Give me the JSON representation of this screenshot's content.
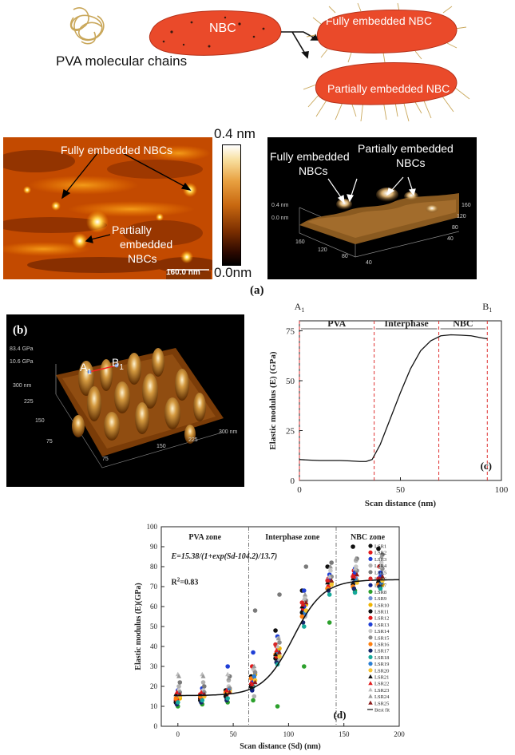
{
  "schematic": {
    "pva_label": "PVA molecular chains",
    "nbc_label": "NBC",
    "fully_label": "Fully embedded NBC",
    "partial_label": "Partially embedded NBC"
  },
  "afm_topography": {
    "fully_label": "Fully embedded NBCs",
    "partial_label_1": "Partially",
    "partial_label_2": "embedded",
    "partial_label_3": "NBCs",
    "scale_bar": "160.0 nm"
  },
  "colorbar": {
    "max": "0.4 nm",
    "min": "0.0nm"
  },
  "afm_3d": {
    "fully_label_1": "Fully embedded",
    "fully_label_2": "NBCs",
    "partial_label_1": "Partially embedded",
    "partial_label_2": "NBCs",
    "z_top": "0.4 nm",
    "z_bottom": "0.0 nm",
    "x_ticks": [
      "160",
      "120",
      "80",
      "40"
    ],
    "y_ticks": [
      "160",
      "120",
      "80",
      "40"
    ]
  },
  "panel_labels": {
    "a": "(a)",
    "b": "(b)",
    "c": "(c)",
    "d": "(d)"
  },
  "modulus_map": {
    "z_top": "83.4 GPa",
    "z_bottom": "10.6 GPa",
    "point_a": "A",
    "point_a_sub": "1",
    "point_b": "B",
    "point_b_sub": "1",
    "y_ticks": [
      "300 nm",
      "225",
      "150",
      "75"
    ],
    "x_ticks": [
      "75",
      "150",
      "225",
      "300 nm"
    ]
  },
  "chart_data": [
    {
      "type": "line",
      "id": "c",
      "title": "",
      "xlabel": "Scan distance (nm)",
      "ylabel": "Elastic modulus (E) (GPa)",
      "xlim": [
        0,
        100
      ],
      "ylim": [
        0,
        80
      ],
      "x_ticks": [
        0,
        50,
        100
      ],
      "y_ticks": [
        0,
        25,
        50,
        75
      ],
      "x": [
        0,
        5,
        10,
        15,
        20,
        25,
        30,
        33,
        36,
        40,
        45,
        50,
        55,
        60,
        65,
        70,
        75,
        80,
        85,
        90,
        93
      ],
      "y": [
        10.5,
        10.2,
        10.0,
        10.0,
        10.0,
        9.8,
        9.5,
        9.5,
        10.5,
        18,
        31,
        44,
        56,
        65,
        70,
        72.5,
        73,
        72.8,
        72.5,
        71.5,
        71
      ],
      "markers": [
        {
          "label": "A",
          "sub": "1",
          "x": 0
        },
        {
          "label": "B",
          "sub": "1",
          "x": 93
        }
      ],
      "regions": [
        {
          "name": "PVA",
          "x0": 0,
          "x1": 37
        },
        {
          "name": "Interphase",
          "x0": 37,
          "x1": 69
        },
        {
          "name": "NBC",
          "x0": 69,
          "x1": 93
        }
      ]
    },
    {
      "type": "scatter",
      "id": "d",
      "xlabel": "Scan distance (Sd) (nm)",
      "ylabel": "Elastic modulus (E)(GPa)",
      "xlim": [
        -15,
        200
      ],
      "ylim": [
        0,
        100
      ],
      "x_ticks": [
        0,
        50,
        100,
        150,
        200
      ],
      "y_ticks": [
        0,
        10,
        20,
        30,
        40,
        50,
        60,
        70,
        80,
        90,
        100
      ],
      "zones": [
        {
          "name": "PVA zone",
          "x0": -15,
          "x1": 64
        },
        {
          "name": "Interphase zone",
          "x0": 64,
          "x1": 143
        },
        {
          "name": "NBC zone",
          "x0": 143,
          "x1": 200
        }
      ],
      "equation": "E=15.38/(1+exp(Sd-104.2)/13.7)",
      "r2": "R",
      "r2_sup": "2",
      "r2_value": "=0.83",
      "fit": {
        "name": "Best fit",
        "base": 15.38,
        "plateau": 73.5,
        "x0": 104.2,
        "k": 13.7
      },
      "scan_positions": [
        0,
        22,
        45,
        68,
        90,
        114,
        137,
        160,
        183
      ],
      "series": [
        {
          "name": "LSR1",
          "color": "#111111",
          "marker": "circle",
          "values": [
            12,
            14,
            18,
            25,
            48,
            68,
            80,
            90,
            89
          ]
        },
        {
          "name": "LSR2",
          "color": "#e31a1c",
          "marker": "circle",
          "values": [
            15,
            15,
            16,
            30,
            40,
            60,
            74,
            78,
            80
          ]
        },
        {
          "name": "LSR3",
          "color": "#1f3fd6",
          "marker": "circle",
          "values": [
            18,
            19,
            30,
            37,
            45,
            68,
            76,
            79,
            77
          ]
        },
        {
          "name": "LSR4",
          "color": "#b0b0b0",
          "marker": "circle",
          "values": [
            20,
            22,
            23,
            15,
            33,
            55,
            72,
            83,
            80
          ]
        },
        {
          "name": "LSR5",
          "color": "#7a7a7a",
          "marker": "circle",
          "values": [
            22,
            20,
            25,
            58,
            66,
            80,
            82,
            84,
            86
          ]
        },
        {
          "name": "LSR6",
          "color": "#d62728",
          "marker": "circle",
          "values": [
            13,
            16,
            17,
            21,
            41,
            62,
            73,
            75,
            74
          ]
        },
        {
          "name": "LSR7",
          "color": "#0b1f8a",
          "marker": "circle",
          "values": [
            11,
            12,
            14,
            18,
            36,
            58,
            70,
            72,
            73
          ]
        },
        {
          "name": "LSR8",
          "color": "#2ca02c",
          "marker": "circle",
          "values": [
            10,
            11,
            12,
            13,
            10,
            30,
            52,
            68,
            70
          ]
        },
        {
          "name": "LSR9",
          "color": "#6a8fd4",
          "marker": "circle",
          "values": [
            16,
            17,
            19,
            24,
            38,
            56,
            71,
            74,
            76
          ]
        },
        {
          "name": "LSR10",
          "color": "#f0b400",
          "marker": "circle",
          "values": [
            14,
            15,
            18,
            26,
            39,
            61,
            72,
            73,
            71
          ]
        },
        {
          "name": "LSR11",
          "color": "#111111",
          "marker": "circle",
          "values": [
            12,
            13,
            15,
            20,
            34,
            57,
            69,
            71,
            72
          ]
        },
        {
          "name": "LSR12",
          "color": "#e31a1c",
          "marker": "circle",
          "values": [
            13,
            14,
            16,
            22,
            35,
            59,
            70,
            76,
            74
          ]
        },
        {
          "name": "LSR13",
          "color": "#1f3fd6",
          "marker": "circle",
          "values": [
            15,
            16,
            17,
            23,
            37,
            60,
            74,
            77,
            75
          ]
        },
        {
          "name": "LSR14",
          "color": "#c8c8c8",
          "marker": "circle",
          "values": [
            18,
            18,
            20,
            28,
            44,
            65,
            78,
            80,
            82
          ]
        },
        {
          "name": "LSR15",
          "color": "#8c8c8c",
          "marker": "circle",
          "values": [
            17,
            17,
            19,
            27,
            42,
            63,
            75,
            78,
            79
          ]
        },
        {
          "name": "LSR16",
          "color": "#ff7f0e",
          "marker": "circle",
          "values": [
            14,
            15,
            17,
            24,
            36,
            55,
            69,
            70,
            71
          ]
        },
        {
          "name": "LSR17",
          "color": "#17286b",
          "marker": "circle",
          "values": [
            11,
            12,
            13,
            19,
            32,
            52,
            68,
            69,
            70
          ]
        },
        {
          "name": "LSR18",
          "color": "#17a99a",
          "marker": "circle",
          "values": [
            12,
            13,
            14,
            20,
            31,
            50,
            66,
            67,
            69
          ]
        },
        {
          "name": "LSR19",
          "color": "#2a7fd4",
          "marker": "circle",
          "values": [
            16,
            16,
            18,
            25,
            37,
            57,
            72,
            73,
            72
          ]
        },
        {
          "name": "LSR20",
          "color": "#f7c531",
          "marker": "circle",
          "values": [
            15,
            15,
            17,
            23,
            35,
            58,
            71,
            72,
            73
          ]
        },
        {
          "name": "LSR21",
          "color": "#111111",
          "marker": "triangle",
          "values": [
            16,
            16,
            16,
            20,
            36,
            60,
            72,
            74,
            73
          ]
        },
        {
          "name": "LSR22",
          "color": "#e31a1c",
          "marker": "triangle",
          "values": [
            17,
            17,
            18,
            21,
            38,
            61,
            73,
            75,
            74
          ]
        },
        {
          "name": "LSR23",
          "color": "#bdbdbd",
          "marker": "triangle",
          "values": [
            26,
            26,
            26,
            29,
            40,
            64,
            75,
            79,
            80
          ]
        },
        {
          "name": "LSR24",
          "color": "#9a9a9a",
          "marker": "triangle",
          "values": [
            25,
            25,
            24,
            30,
            44,
            66,
            80,
            84,
            85
          ]
        },
        {
          "name": "LSR25",
          "color": "#8b1a1a",
          "marker": "triangle",
          "values": [
            16,
            16,
            17,
            22,
            37,
            62,
            73,
            76,
            75
          ]
        }
      ]
    }
  ]
}
